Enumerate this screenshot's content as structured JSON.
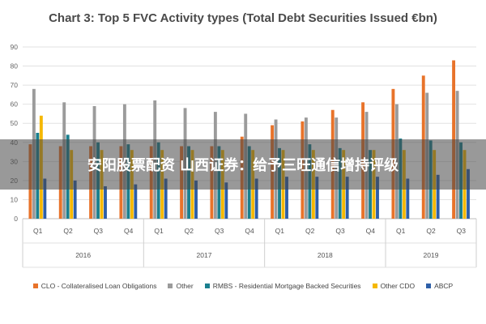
{
  "chart_data": {
    "type": "bar",
    "title": "Chart 3: Top 5 FVC Activity types (Total Debt Securities Issued €bn)",
    "ylim": [
      0,
      90
    ],
    "yticks": [
      0,
      10,
      20,
      30,
      40,
      50,
      60,
      70,
      80,
      90
    ],
    "grid": true,
    "legend_position": "bottom",
    "quarters": [
      "Q1",
      "Q2",
      "Q3",
      "Q4",
      "Q1",
      "Q2",
      "Q3",
      "Q4",
      "Q1",
      "Q2",
      "Q3",
      "Q4",
      "Q1",
      "Q2",
      "Q3"
    ],
    "years": [
      {
        "label": "2016",
        "quarters": 4
      },
      {
        "label": "2017",
        "quarters": 4
      },
      {
        "label": "2018",
        "quarters": 4
      },
      {
        "label": "2019",
        "quarters": 3
      }
    ],
    "series": [
      {
        "name": "CLO - Collateralised Loan Obligations",
        "color": "#e8732a",
        "values": [
          39,
          38,
          38,
          38,
          38,
          38,
          38,
          43,
          49,
          51,
          57,
          61,
          68,
          75,
          83
        ]
      },
      {
        "name": "Other",
        "color": "#9b9b9b",
        "values": [
          68,
          61,
          59,
          60,
          62,
          58,
          56,
          55,
          52,
          53,
          53,
          56,
          60,
          66,
          67
        ]
      },
      {
        "name": "RMBS - Residential Mortgage Backed Securities",
        "color": "#1a7f8e",
        "values": [
          45,
          44,
          40,
          39,
          40,
          38,
          38,
          38,
          37,
          39,
          37,
          36,
          42,
          41,
          40
        ]
      },
      {
        "name": "Other CDO",
        "color": "#f5b800",
        "values": [
          54,
          36,
          36,
          36,
          36,
          36,
          36,
          36,
          36,
          36,
          36,
          36,
          36,
          36,
          36
        ]
      },
      {
        "name": "ABCP",
        "color": "#2e5fa8",
        "values": [
          21,
          20,
          17,
          18,
          21,
          20,
          19,
          21,
          22,
          22,
          22,
          22,
          21,
          23,
          26
        ]
      }
    ]
  },
  "overlay_banner": "安阳股票配资 山西证券：给予三旺通信增持评级"
}
